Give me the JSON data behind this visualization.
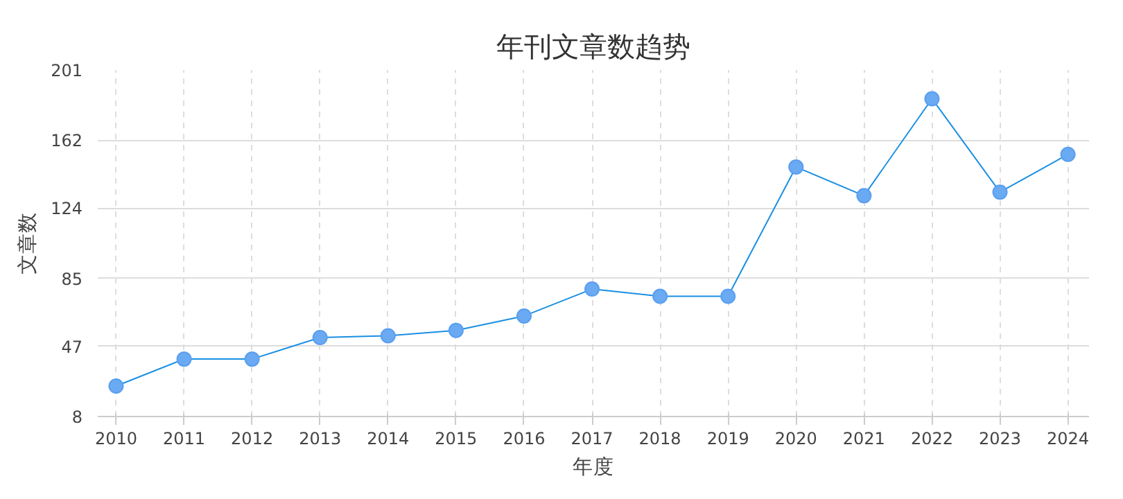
{
  "chart_data": {
    "type": "line",
    "title": "年刊文章数趋势",
    "xlabel": "年度",
    "ylabel": "文章数",
    "categories": [
      "2010",
      "2011",
      "2012",
      "2013",
      "2014",
      "2015",
      "2016",
      "2017",
      "2018",
      "2019",
      "2020",
      "2021",
      "2022",
      "2023",
      "2024"
    ],
    "series": [
      {
        "color": "#1a8fe3",
        "values": [
          25,
          40,
          40,
          52,
          53,
          56,
          64,
          79,
          75,
          75,
          147,
          131,
          185,
          133,
          154
        ]
      }
    ],
    "ylim": [
      8,
      201
    ],
    "yticks": [
      8,
      47,
      85,
      124,
      162,
      201
    ],
    "grid": true,
    "marker": "circle",
    "line_style": "solid"
  }
}
